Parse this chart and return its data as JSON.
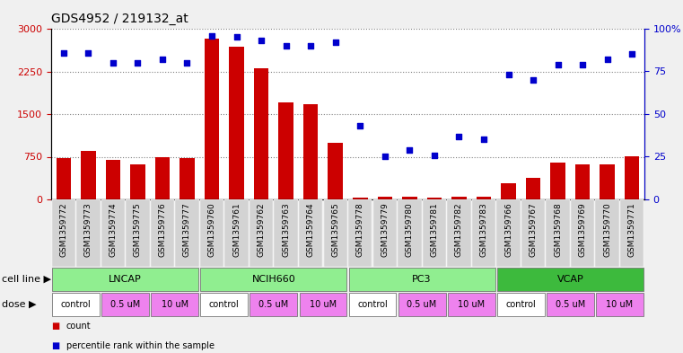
{
  "title": "GDS4952 / 219132_at",
  "samples": [
    "GSM1359772",
    "GSM1359773",
    "GSM1359774",
    "GSM1359775",
    "GSM1359776",
    "GSM1359777",
    "GSM1359760",
    "GSM1359761",
    "GSM1359762",
    "GSM1359763",
    "GSM1359764",
    "GSM1359765",
    "GSM1359778",
    "GSM1359779",
    "GSM1359780",
    "GSM1359781",
    "GSM1359782",
    "GSM1359783",
    "GSM1359766",
    "GSM1359767",
    "GSM1359768",
    "GSM1359769",
    "GSM1359770",
    "GSM1359771"
  ],
  "counts": [
    730,
    860,
    690,
    620,
    750,
    720,
    2820,
    2680,
    2310,
    1700,
    1680,
    1000,
    30,
    50,
    40,
    30,
    50,
    40,
    280,
    380,
    640,
    610,
    620,
    760
  ],
  "percentiles": [
    86,
    86,
    80,
    80,
    82,
    80,
    96,
    95,
    93,
    90,
    90,
    92,
    43,
    25,
    29,
    26,
    37,
    35,
    73,
    70,
    79,
    79,
    82,
    85
  ],
  "cell_lines": [
    {
      "label": "LNCAP",
      "start": 0,
      "end": 6,
      "color": "#90ee90"
    },
    {
      "label": "NCIH660",
      "start": 6,
      "end": 12,
      "color": "#90ee90"
    },
    {
      "label": "PC3",
      "start": 12,
      "end": 18,
      "color": "#90ee90"
    },
    {
      "label": "VCAP",
      "start": 18,
      "end": 24,
      "color": "#3dba3d"
    }
  ],
  "doses": [
    {
      "label": "control",
      "start": 0,
      "end": 2,
      "color": "#ffffff"
    },
    {
      "label": "0.5 uM",
      "start": 2,
      "end": 4,
      "color": "#ee82ee"
    },
    {
      "label": "10 uM",
      "start": 4,
      "end": 6,
      "color": "#ee82ee"
    },
    {
      "label": "control",
      "start": 6,
      "end": 8,
      "color": "#ffffff"
    },
    {
      "label": "0.5 uM",
      "start": 8,
      "end": 10,
      "color": "#ee82ee"
    },
    {
      "label": "10 uM",
      "start": 10,
      "end": 12,
      "color": "#ee82ee"
    },
    {
      "label": "control",
      "start": 12,
      "end": 14,
      "color": "#ffffff"
    },
    {
      "label": "0.5 uM",
      "start": 14,
      "end": 16,
      "color": "#ee82ee"
    },
    {
      "label": "10 uM",
      "start": 16,
      "end": 18,
      "color": "#ee82ee"
    },
    {
      "label": "control",
      "start": 18,
      "end": 20,
      "color": "#ffffff"
    },
    {
      "label": "0.5 uM",
      "start": 20,
      "end": 22,
      "color": "#ee82ee"
    },
    {
      "label": "10 uM",
      "start": 22,
      "end": 24,
      "color": "#ee82ee"
    }
  ],
  "bar_color": "#cc0000",
  "dot_color": "#0000cc",
  "left_ylim": [
    0,
    3000
  ],
  "left_yticks": [
    0,
    750,
    1500,
    2250,
    3000
  ],
  "right_ylim": [
    0,
    100
  ],
  "right_yticks": [
    0,
    25,
    50,
    75,
    100
  ],
  "right_yticklabels": [
    "0",
    "25",
    "50",
    "75",
    "100%"
  ],
  "bg_color": "#f0f0f0",
  "plot_bg": "#ffffff",
  "title_fontsize": 10,
  "tick_label_fontsize": 6.5,
  "legend_count_color": "#cc0000",
  "legend_pct_color": "#0000cc",
  "cell_line_fontsize": 8,
  "dose_fontsize": 7,
  "label_fontsize": 8
}
